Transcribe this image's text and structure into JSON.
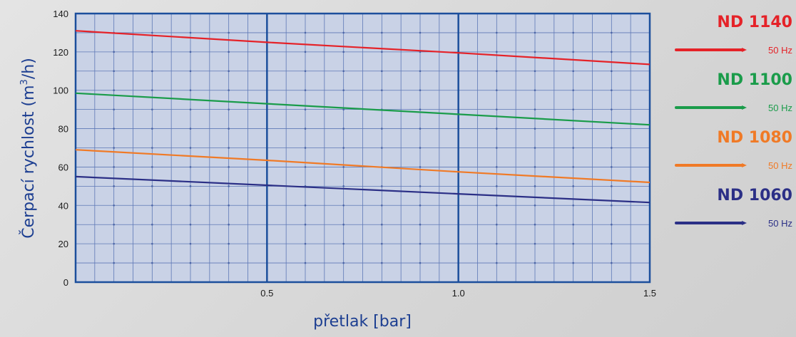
{
  "chart_data": {
    "type": "line",
    "title": "",
    "xlabel": "přetlak [bar]",
    "ylabel_main": "Čerpací rychlost (m",
    "ylabel_sup": "3",
    "ylabel_tail": "/h)",
    "xlim": [
      0,
      1.5
    ],
    "ylim": [
      0,
      140
    ],
    "x_ticks": [
      {
        "value": 0.5,
        "label": "0.5"
      },
      {
        "value": 1.0,
        "label": "1.0"
      },
      {
        "value": 1.5,
        "label": "1.5"
      }
    ],
    "y_ticks": [
      {
        "value": 0,
        "label": "0"
      },
      {
        "value": 20,
        "label": "20"
      },
      {
        "value": 40,
        "label": "40"
      },
      {
        "value": 60,
        "label": "60"
      },
      {
        "value": 80,
        "label": "80"
      },
      {
        "value": 100,
        "label": "100"
      },
      {
        "value": 120,
        "label": "120"
      },
      {
        "value": 140,
        "label": "140"
      }
    ],
    "grid": true,
    "legend_position": "right",
    "series": [
      {
        "name": "ND 1140",
        "freq": "50 Hz",
        "color": "#e52228",
        "x": [
          0,
          0.5,
          1.0,
          1.5
        ],
        "values": [
          131,
          125,
          119.5,
          113.5
        ]
      },
      {
        "name": "ND 1100",
        "freq": "50 Hz",
        "color": "#1a9c4a",
        "x": [
          0,
          0.5,
          1.0,
          1.5
        ],
        "values": [
          98.5,
          93,
          87.5,
          82
        ]
      },
      {
        "name": "ND 1080",
        "freq": "50 Hz",
        "color": "#f07a26",
        "x": [
          0,
          0.5,
          1.0,
          1.5
        ],
        "values": [
          69,
          63.5,
          57.5,
          52
        ]
      },
      {
        "name": "ND 1060",
        "freq": "50 Hz",
        "color": "#2b2f86",
        "x": [
          0,
          0.5,
          1.0,
          1.5
        ],
        "values": [
          55,
          50.5,
          46,
          41.5
        ]
      }
    ]
  }
}
